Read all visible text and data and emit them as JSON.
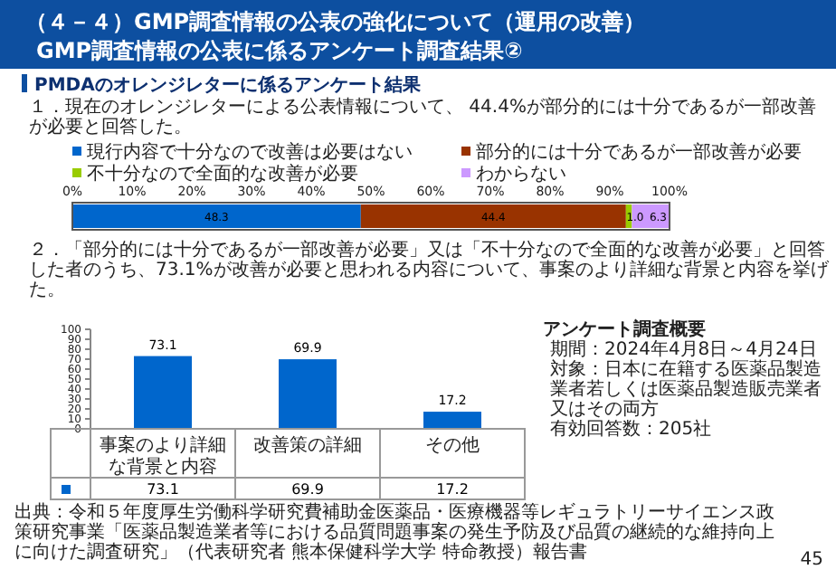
{
  "chart_data": [
    {
      "type": "bar",
      "orientation": "horizontal",
      "stacked": true,
      "title": "１．現在のオレンジレターによる公表情報について、 44.4%が部分的には十分であるが一部改善が必要と回答した。",
      "annotations": [
        "（４－４）GMP調査情報の公表の強化について（運用の改善）",
        "GMP調査情報の公表に係るアンケート調査結果②",
        "PMDAのオレンジレターに係るアンケート結果"
      ],
      "categories": [
        null
      ],
      "series": [
        {
          "name": "現行内容で十分なので改善は必要はない",
          "color": "#0066cc",
          "values": [
            48.3
          ]
        },
        {
          "name": "部分的には十分であるが一部改善が必要",
          "color": "#993300",
          "values": [
            44.4
          ]
        },
        {
          "name": "不十分なので全面的な改善が必要",
          "color": "#99cc00",
          "values": [
            1.0
          ],
          "value_labels": [
            "1.0"
          ]
        },
        {
          "name": "わからない",
          "color": "#cc99ff",
          "values": [
            6.3
          ]
        }
      ],
      "xlim": [
        0,
        100
      ],
      "xticks": [
        {
          "value": 0,
          "label": "0%"
        },
        {
          "value": 10,
          "label": "10%"
        },
        {
          "value": 20,
          "label": "20%"
        },
        {
          "value": 30,
          "label": "30%"
        },
        {
          "value": 40,
          "label": "40%"
        },
        {
          "value": 50,
          "label": "50%"
        },
        {
          "value": 60,
          "label": "60%"
        },
        {
          "value": 70,
          "label": "70%"
        },
        {
          "value": 80,
          "label": "80%"
        },
        {
          "value": 90,
          "label": "90%"
        },
        {
          "value": 100,
          "label": "100%"
        }
      ],
      "data_labels": true,
      "legend": "top"
    },
    {
      "type": "bar",
      "title": "２．「部分的には十分であるが一部改善が必要」又は「不十分なので全面的な改善が必要」と回答した者のうち、73.1%が改善が必要と思われる内容について、事案のより詳細な背景と内容を挙げた。",
      "annotations": [
        "アンケート調査概要",
        "期間：2024年4月8日～4月24日",
        "対象：日本に在籍する医薬品製造業者若しくは医薬品製造販売業者又はその両方",
        "有効回答数：205社",
        "出典：令和５年度厚生労働科学研究費補助金医薬品・医療機器等レギュラトリーサイエンス政策研究事業「医薬品製造業者等における品質問題事案の発生予防及び品質の継続的な維持向上に向けた調査研究」（代表研究者 熊本保健科学大学 特命教授）報告書",
        "45",
        "73.1",
        "69.9",
        "17.2"
      ],
      "categories": [
        "事案のより詳細な背景と内容",
        "改善策の詳細",
        "その他"
      ],
      "values": [
        73.1,
        69.9,
        17.2
      ],
      "value_labels": [
        "73.1",
        "69.9",
        "17.2"
      ],
      "color": "#0066cc",
      "ylim": [
        0,
        100
      ],
      "yticks": [
        0,
        10,
        20,
        30,
        40,
        50,
        60,
        70,
        80,
        90,
        100
      ]
    }
  ]
}
